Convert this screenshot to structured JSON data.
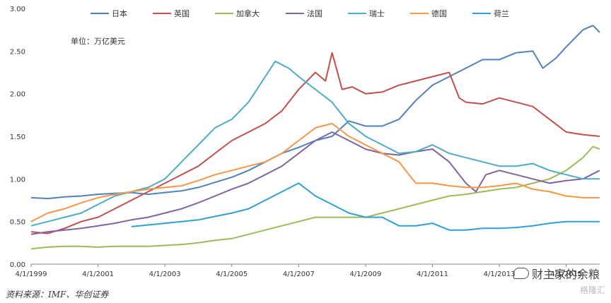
{
  "source_text": "资料来源：IMF、华创证券",
  "watermark": "财主家的余粮",
  "watermark2": "格隆汇",
  "chart_data": {
    "type": "line",
    "title": "",
    "unit_label": "单位：万亿美元",
    "ylim": [
      0,
      3.0
    ],
    "yticks": [
      "0.00",
      "0.50",
      "1.00",
      "1.50",
      "2.00",
      "2.50",
      "3.00"
    ],
    "xticks": [
      "4/1/1999",
      "4/1/2001",
      "4/1/2003",
      "4/1/2005",
      "4/1/2007",
      "4/1/2009",
      "4/1/2011",
      "4/1/2013",
      "4/1/2015"
    ],
    "xlim": [
      1999.0,
      2016.0
    ],
    "grid": false,
    "legend_position": "top",
    "series": [
      {
        "name": "日本",
        "color": "#4F81BD",
        "points": [
          [
            1999.0,
            0.78
          ],
          [
            1999.5,
            0.77
          ],
          [
            2000.0,
            0.79
          ],
          [
            2000.5,
            0.8
          ],
          [
            2001.0,
            0.82
          ],
          [
            2001.5,
            0.83
          ],
          [
            2002.0,
            0.84
          ],
          [
            2002.5,
            0.82
          ],
          [
            2003.0,
            0.84
          ],
          [
            2003.5,
            0.86
          ],
          [
            2004.0,
            0.9
          ],
          [
            2004.5,
            0.96
          ],
          [
            2005.0,
            1.02
          ],
          [
            2005.5,
            1.1
          ],
          [
            2006.0,
            1.2
          ],
          [
            2006.5,
            1.3
          ],
          [
            2007.0,
            1.37
          ],
          [
            2007.5,
            1.45
          ],
          [
            2008.0,
            1.5
          ],
          [
            2008.5,
            1.68
          ],
          [
            2009.0,
            1.62
          ],
          [
            2009.5,
            1.62
          ],
          [
            2010.0,
            1.7
          ],
          [
            2010.5,
            1.92
          ],
          [
            2011.0,
            2.1
          ],
          [
            2011.5,
            2.2
          ],
          [
            2012.0,
            2.3
          ],
          [
            2012.5,
            2.4
          ],
          [
            2013.0,
            2.4
          ],
          [
            2013.5,
            2.48
          ],
          [
            2014.0,
            2.5
          ],
          [
            2014.3,
            2.3
          ],
          [
            2014.7,
            2.42
          ],
          [
            2015.0,
            2.55
          ],
          [
            2015.5,
            2.75
          ],
          [
            2015.8,
            2.8
          ],
          [
            2016.0,
            2.72
          ]
        ]
      },
      {
        "name": "英国",
        "color": "#C0504D",
        "points": [
          [
            1999.0,
            0.38
          ],
          [
            1999.5,
            0.36
          ],
          [
            2000.0,
            0.42
          ],
          [
            2000.5,
            0.5
          ],
          [
            2001.0,
            0.55
          ],
          [
            2001.5,
            0.65
          ],
          [
            2002.0,
            0.75
          ],
          [
            2002.5,
            0.85
          ],
          [
            2003.0,
            0.95
          ],
          [
            2003.5,
            1.05
          ],
          [
            2004.0,
            1.15
          ],
          [
            2004.5,
            1.3
          ],
          [
            2005.0,
            1.45
          ],
          [
            2005.5,
            1.55
          ],
          [
            2006.0,
            1.65
          ],
          [
            2006.5,
            1.8
          ],
          [
            2007.0,
            2.05
          ],
          [
            2007.5,
            2.25
          ],
          [
            2007.8,
            2.15
          ],
          [
            2008.0,
            2.48
          ],
          [
            2008.3,
            2.05
          ],
          [
            2008.6,
            2.08
          ],
          [
            2009.0,
            2.0
          ],
          [
            2009.5,
            2.02
          ],
          [
            2010.0,
            2.1
          ],
          [
            2010.5,
            2.15
          ],
          [
            2011.0,
            2.2
          ],
          [
            2011.5,
            2.25
          ],
          [
            2011.8,
            1.95
          ],
          [
            2012.0,
            1.9
          ],
          [
            2012.5,
            1.88
          ],
          [
            2013.0,
            1.95
          ],
          [
            2013.5,
            1.9
          ],
          [
            2014.0,
            1.85
          ],
          [
            2014.5,
            1.7
          ],
          [
            2015.0,
            1.55
          ],
          [
            2015.5,
            1.52
          ],
          [
            2016.0,
            1.5
          ]
        ]
      },
      {
        "name": "加拿大",
        "color": "#9BBB59",
        "points": [
          [
            1999.0,
            0.18
          ],
          [
            1999.5,
            0.2
          ],
          [
            2000.0,
            0.21
          ],
          [
            2000.5,
            0.21
          ],
          [
            2001.0,
            0.2
          ],
          [
            2001.5,
            0.21
          ],
          [
            2002.0,
            0.21
          ],
          [
            2002.5,
            0.21
          ],
          [
            2003.0,
            0.22
          ],
          [
            2003.5,
            0.23
          ],
          [
            2004.0,
            0.25
          ],
          [
            2004.5,
            0.28
          ],
          [
            2005.0,
            0.3
          ],
          [
            2005.5,
            0.35
          ],
          [
            2006.0,
            0.4
          ],
          [
            2006.5,
            0.45
          ],
          [
            2007.0,
            0.5
          ],
          [
            2007.5,
            0.55
          ],
          [
            2008.0,
            0.55
          ],
          [
            2008.5,
            0.55
          ],
          [
            2009.0,
            0.55
          ],
          [
            2009.5,
            0.6
          ],
          [
            2010.0,
            0.65
          ],
          [
            2010.5,
            0.7
          ],
          [
            2011.0,
            0.75
          ],
          [
            2011.5,
            0.8
          ],
          [
            2012.0,
            0.82
          ],
          [
            2012.5,
            0.85
          ],
          [
            2013.0,
            0.88
          ],
          [
            2013.5,
            0.9
          ],
          [
            2014.0,
            0.95
          ],
          [
            2014.5,
            1.0
          ],
          [
            2015.0,
            1.1
          ],
          [
            2015.5,
            1.25
          ],
          [
            2015.8,
            1.38
          ],
          [
            2016.0,
            1.35
          ]
        ]
      },
      {
        "name": "法国",
        "color": "#8064A2",
        "points": [
          [
            1999.0,
            0.35
          ],
          [
            1999.5,
            0.38
          ],
          [
            2000.0,
            0.4
          ],
          [
            2000.5,
            0.42
          ],
          [
            2001.0,
            0.45
          ],
          [
            2001.5,
            0.48
          ],
          [
            2002.0,
            0.52
          ],
          [
            2002.5,
            0.55
          ],
          [
            2003.0,
            0.6
          ],
          [
            2003.5,
            0.65
          ],
          [
            2004.0,
            0.72
          ],
          [
            2004.5,
            0.8
          ],
          [
            2005.0,
            0.88
          ],
          [
            2005.5,
            0.95
          ],
          [
            2006.0,
            1.05
          ],
          [
            2006.5,
            1.15
          ],
          [
            2007.0,
            1.3
          ],
          [
            2007.5,
            1.45
          ],
          [
            2008.0,
            1.55
          ],
          [
            2008.5,
            1.45
          ],
          [
            2009.0,
            1.35
          ],
          [
            2009.5,
            1.3
          ],
          [
            2010.0,
            1.28
          ],
          [
            2010.5,
            1.32
          ],
          [
            2011.0,
            1.35
          ],
          [
            2011.5,
            1.2
          ],
          [
            2012.0,
            0.95
          ],
          [
            2012.3,
            0.85
          ],
          [
            2012.6,
            1.05
          ],
          [
            2013.0,
            1.1
          ],
          [
            2013.5,
            1.05
          ],
          [
            2014.0,
            1.0
          ],
          [
            2014.5,
            0.95
          ],
          [
            2015.0,
            0.98
          ],
          [
            2015.5,
            1.0
          ],
          [
            2016.0,
            1.1
          ]
        ]
      },
      {
        "name": "瑞士",
        "color": "#4BACC6",
        "points": [
          [
            1999.0,
            0.45
          ],
          [
            1999.5,
            0.5
          ],
          [
            2000.0,
            0.55
          ],
          [
            2000.5,
            0.6
          ],
          [
            2001.0,
            0.7
          ],
          [
            2001.5,
            0.8
          ],
          [
            2002.0,
            0.85
          ],
          [
            2002.5,
            0.9
          ],
          [
            2003.0,
            1.0
          ],
          [
            2003.5,
            1.2
          ],
          [
            2004.0,
            1.4
          ],
          [
            2004.5,
            1.6
          ],
          [
            2005.0,
            1.7
          ],
          [
            2005.5,
            1.9
          ],
          [
            2006.0,
            2.2
          ],
          [
            2006.3,
            2.38
          ],
          [
            2006.7,
            2.3
          ],
          [
            2007.0,
            2.2
          ],
          [
            2007.5,
            2.05
          ],
          [
            2008.0,
            1.9
          ],
          [
            2008.5,
            1.65
          ],
          [
            2009.0,
            1.5
          ],
          [
            2009.5,
            1.4
          ],
          [
            2010.0,
            1.3
          ],
          [
            2010.5,
            1.32
          ],
          [
            2011.0,
            1.4
          ],
          [
            2011.5,
            1.3
          ],
          [
            2012.0,
            1.25
          ],
          [
            2012.5,
            1.2
          ],
          [
            2013.0,
            1.15
          ],
          [
            2013.5,
            1.15
          ],
          [
            2014.0,
            1.18
          ],
          [
            2014.5,
            1.1
          ],
          [
            2015.0,
            1.05
          ],
          [
            2015.5,
            1.0
          ],
          [
            2016.0,
            1.0
          ]
        ]
      },
      {
        "name": "德国",
        "color": "#F79646",
        "points": [
          [
            1999.0,
            0.5
          ],
          [
            1999.5,
            0.6
          ],
          [
            2000.0,
            0.65
          ],
          [
            2000.5,
            0.72
          ],
          [
            2001.0,
            0.78
          ],
          [
            2001.5,
            0.82
          ],
          [
            2002.0,
            0.85
          ],
          [
            2002.5,
            0.88
          ],
          [
            2003.0,
            0.9
          ],
          [
            2003.5,
            0.92
          ],
          [
            2004.0,
            0.98
          ],
          [
            2004.5,
            1.05
          ],
          [
            2005.0,
            1.1
          ],
          [
            2005.5,
            1.15
          ],
          [
            2006.0,
            1.2
          ],
          [
            2006.5,
            1.3
          ],
          [
            2007.0,
            1.45
          ],
          [
            2007.5,
            1.6
          ],
          [
            2008.0,
            1.65
          ],
          [
            2008.5,
            1.5
          ],
          [
            2009.0,
            1.4
          ],
          [
            2009.5,
            1.3
          ],
          [
            2010.0,
            1.2
          ],
          [
            2010.5,
            0.95
          ],
          [
            2011.0,
            0.95
          ],
          [
            2011.5,
            0.92
          ],
          [
            2012.0,
            0.9
          ],
          [
            2012.5,
            0.9
          ],
          [
            2013.0,
            0.92
          ],
          [
            2013.5,
            0.95
          ],
          [
            2014.0,
            0.88
          ],
          [
            2014.5,
            0.85
          ],
          [
            2015.0,
            0.8
          ],
          [
            2015.5,
            0.78
          ],
          [
            2016.0,
            0.78
          ]
        ]
      },
      {
        "name": "荷兰",
        "color": "#2E9FD8",
        "points": [
          [
            2002.0,
            0.44
          ],
          [
            2002.5,
            0.46
          ],
          [
            2003.0,
            0.48
          ],
          [
            2003.5,
            0.5
          ],
          [
            2004.0,
            0.52
          ],
          [
            2004.5,
            0.56
          ],
          [
            2005.0,
            0.6
          ],
          [
            2005.5,
            0.65
          ],
          [
            2006.0,
            0.75
          ],
          [
            2006.5,
            0.85
          ],
          [
            2007.0,
            0.95
          ],
          [
            2007.5,
            0.8
          ],
          [
            2008.0,
            0.7
          ],
          [
            2008.5,
            0.6
          ],
          [
            2009.0,
            0.55
          ],
          [
            2009.5,
            0.55
          ],
          [
            2010.0,
            0.45
          ],
          [
            2010.5,
            0.45
          ],
          [
            2011.0,
            0.48
          ],
          [
            2011.5,
            0.4
          ],
          [
            2012.0,
            0.4
          ],
          [
            2012.5,
            0.42
          ],
          [
            2013.0,
            0.42
          ],
          [
            2013.5,
            0.43
          ],
          [
            2014.0,
            0.45
          ],
          [
            2014.5,
            0.48
          ],
          [
            2015.0,
            0.5
          ],
          [
            2015.5,
            0.5
          ],
          [
            2016.0,
            0.5
          ]
        ]
      }
    ]
  }
}
